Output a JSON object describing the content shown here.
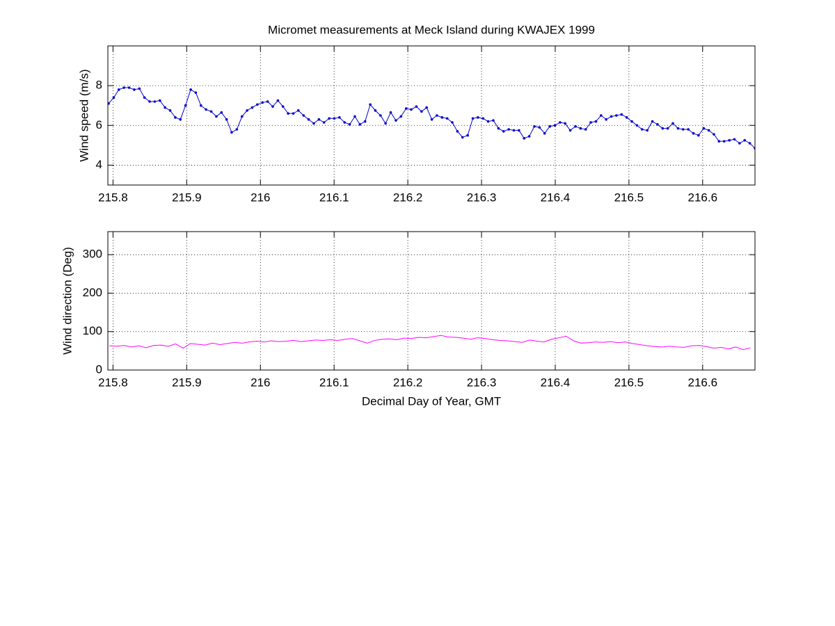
{
  "chart_data": [
    {
      "type": "line",
      "title": "Micromet measurements at Meck Island during KWAJEX 1999",
      "ylabel": "Wind speed (m/s)",
      "x": [
        215.794,
        215.801,
        215.8079,
        215.8149,
        215.8218,
        215.8288,
        215.8358,
        215.8427,
        215.8497,
        215.8566,
        215.8636,
        215.8706,
        215.8775,
        215.8845,
        215.8914,
        215.8984,
        215.9054,
        215.9123,
        215.9193,
        215.9262,
        215.9332,
        215.9402,
        215.9471,
        215.9541,
        215.961,
        215.968,
        215.975,
        215.9819,
        215.9889,
        215.9958,
        216.0028,
        216.0098,
        216.0167,
        216.0237,
        216.0306,
        216.0376,
        216.0446,
        216.0515,
        216.0585,
        216.0654,
        216.0724,
        216.0794,
        216.0863,
        216.0933,
        216.1002,
        216.1072,
        216.1142,
        216.1211,
        216.1281,
        216.135,
        216.142,
        216.149,
        216.1559,
        216.1629,
        216.1698,
        216.1768,
        216.1838,
        216.1907,
        216.1977,
        216.2046,
        216.2116,
        216.2186,
        216.2255,
        216.2325,
        216.2394,
        216.2464,
        216.2534,
        216.2603,
        216.2673,
        216.2742,
        216.2812,
        216.2882,
        216.2951,
        216.3021,
        216.309,
        216.316,
        216.323,
        216.3299,
        216.3369,
        216.3438,
        216.3508,
        216.3578,
        216.3647,
        216.3717,
        216.3786,
        216.3856,
        216.3926,
        216.3995,
        216.4065,
        216.4134,
        216.4204,
        216.4274,
        216.4343,
        216.4413,
        216.4482,
        216.4552,
        216.4622,
        216.4691,
        216.4761,
        216.483,
        216.49,
        216.497,
        216.5039,
        216.5109,
        216.5178,
        216.5248,
        216.5318,
        216.5387,
        216.5457,
        216.5526,
        216.5596,
        216.5666,
        216.5735,
        216.5805,
        216.5874,
        216.5944,
        216.6014,
        216.6083,
        216.6153,
        216.6222,
        216.6292,
        216.6362,
        216.6431,
        216.6501,
        216.657,
        216.664,
        216.671
      ],
      "series": [
        {
          "color": "#0000cc",
          "markers": true,
          "values": [
            7.1,
            7.4,
            7.8,
            7.9,
            7.9,
            7.8,
            7.85,
            7.4,
            7.2,
            7.2,
            7.25,
            6.9,
            6.75,
            6.4,
            6.3,
            7.0,
            7.8,
            7.65,
            7.0,
            6.8,
            6.7,
            6.45,
            6.65,
            6.3,
            5.65,
            5.8,
            6.45,
            6.75,
            6.9,
            7.05,
            7.15,
            7.2,
            6.95,
            7.25,
            6.95,
            6.6,
            6.6,
            6.75,
            6.5,
            6.3,
            6.1,
            6.3,
            6.15,
            6.35,
            6.35,
            6.4,
            6.15,
            6.05,
            6.45,
            6.05,
            6.2,
            7.05,
            6.75,
            6.5,
            6.1,
            6.65,
            6.25,
            6.45,
            6.85,
            6.8,
            6.95,
            6.7,
            6.9,
            6.3,
            6.5,
            6.4,
            6.35,
            6.15,
            5.7,
            5.4,
            5.5,
            6.35,
            6.4,
            6.35,
            6.2,
            6.25,
            5.85,
            5.7,
            5.8,
            5.75,
            5.75,
            5.35,
            5.45,
            5.95,
            5.9,
            5.6,
            5.95,
            6.0,
            6.15,
            6.1,
            5.75,
            5.95,
            5.85,
            5.8,
            6.15,
            6.2,
            6.5,
            6.3,
            6.45,
            6.5,
            6.55,
            6.4,
            6.2,
            6.0,
            5.8,
            5.75,
            6.2,
            6.05,
            5.85,
            5.85,
            6.1,
            5.85,
            5.8,
            5.8,
            5.6,
            5.5,
            5.85,
            5.75,
            5.55,
            5.2,
            5.2,
            5.25,
            5.3,
            5.1,
            5.25,
            5.1,
            4.85
          ]
        }
      ],
      "xlim": [
        215.793,
        216.671
      ],
      "xticks": [
        215.8,
        215.9,
        216,
        216.1,
        216.2,
        216.3,
        216.4,
        216.5,
        216.6
      ],
      "ylim": [
        3,
        10
      ],
      "yticks": [
        4,
        6,
        8
      ],
      "grid": true
    },
    {
      "type": "line",
      "ylabel": "Wind direction (Deg)",
      "xlabel": "Decimal Day of Year, GMT",
      "x": [
        215.795,
        215.805,
        215.815,
        215.825,
        215.835,
        215.845,
        215.855,
        215.865,
        215.875,
        215.885,
        215.895,
        215.905,
        215.915,
        215.925,
        215.935,
        215.945,
        215.955,
        215.965,
        215.975,
        215.985,
        215.995,
        216.005,
        216.015,
        216.025,
        216.035,
        216.045,
        216.055,
        216.065,
        216.075,
        216.085,
        216.095,
        216.105,
        216.115,
        216.125,
        216.135,
        216.145,
        216.155,
        216.165,
        216.175,
        216.185,
        216.195,
        216.205,
        216.215,
        216.225,
        216.235,
        216.245,
        216.255,
        216.265,
        216.275,
        216.285,
        216.295,
        216.305,
        216.315,
        216.325,
        216.335,
        216.345,
        216.355,
        216.365,
        216.375,
        216.385,
        216.395,
        216.405,
        216.415,
        216.425,
        216.435,
        216.445,
        216.455,
        216.465,
        216.475,
        216.485,
        216.495,
        216.505,
        216.515,
        216.525,
        216.535,
        216.545,
        216.555,
        216.565,
        216.575,
        216.585,
        216.595,
        216.605,
        216.615,
        216.625,
        216.635,
        216.645,
        216.655,
        216.665
      ],
      "series": [
        {
          "color": "#ff00ff",
          "markers": false,
          "values": [
            63,
            62,
            64,
            60,
            63,
            58,
            64,
            65,
            62,
            68,
            57,
            69,
            67,
            65,
            70,
            66,
            69,
            72,
            70,
            73,
            75,
            73,
            76,
            74,
            75,
            77,
            74,
            76,
            78,
            77,
            79,
            77,
            80,
            82,
            76,
            70,
            77,
            80,
            81,
            79,
            83,
            82,
            85,
            84,
            87,
            90,
            86,
            85,
            83,
            80,
            84,
            82,
            79,
            77,
            76,
            74,
            72,
            78,
            75,
            73,
            80,
            84,
            88,
            76,
            70,
            71,
            73,
            72,
            74,
            71,
            73,
            69,
            66,
            63,
            61,
            60,
            62,
            60,
            59,
            63,
            64,
            61,
            57,
            59,
            55,
            60,
            53,
            58
          ]
        }
      ],
      "xlim": [
        215.793,
        216.671
      ],
      "xticks": [
        215.8,
        215.9,
        216,
        216.1,
        216.2,
        216.3,
        216.4,
        216.5,
        216.6
      ],
      "ylim": [
        0,
        360
      ],
      "yticks": [
        0,
        100,
        200,
        300
      ],
      "grid": true
    }
  ]
}
